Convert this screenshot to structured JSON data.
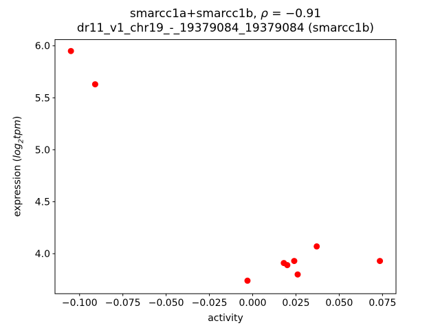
{
  "figure": {
    "background": "#ffffff",
    "text_color": "#000000"
  },
  "chart_data": {
    "type": "scatter",
    "title": "smarcc1a+smarcc1b, ρ = −0.91",
    "title_parts": {
      "prefix": "smarcc1a+smarcc1b, ",
      "rho": "ρ",
      "suffix": " = −0.91"
    },
    "subtitle": "dr11_v1_chr19_-_19379084_19379084 (smarcc1b)",
    "correlation_rho": -0.91,
    "xlabel": "activity",
    "ylabel": "expression (log2tpm)",
    "ylabel_parts": {
      "prefix": "expression (",
      "math_word1": "log",
      "subscript": "2",
      "math_word2": "tpm",
      "suffix": ")"
    },
    "marker_color": "#ff0000",
    "grid": false,
    "legend": null,
    "xlim": [
      -0.1142,
      0.0828
    ],
    "ylim": [
      3.615,
      6.06
    ],
    "x_ticks": [
      -0.1,
      -0.075,
      -0.05,
      -0.025,
      0.0,
      0.025,
      0.05,
      0.075
    ],
    "x_tick_labels": [
      "−0.100",
      "−0.075",
      "−0.050",
      "−0.025",
      "0.000",
      "0.025",
      "0.050",
      "0.075"
    ],
    "y_ticks": [
      4.0,
      4.5,
      5.0,
      5.5,
      6.0
    ],
    "y_tick_labels": [
      "4.0",
      "4.5",
      "5.0",
      "5.5",
      "6.0"
    ],
    "points": [
      {
        "x": -0.105,
        "y": 5.95
      },
      {
        "x": -0.091,
        "y": 5.63
      },
      {
        "x": -0.003,
        "y": 3.74
      },
      {
        "x": 0.018,
        "y": 3.91
      },
      {
        "x": 0.02,
        "y": 3.89
      },
      {
        "x": 0.024,
        "y": 3.93
      },
      {
        "x": 0.026,
        "y": 3.8
      },
      {
        "x": 0.037,
        "y": 4.07
      },
      {
        "x": 0.0735,
        "y": 3.93
      }
    ]
  }
}
